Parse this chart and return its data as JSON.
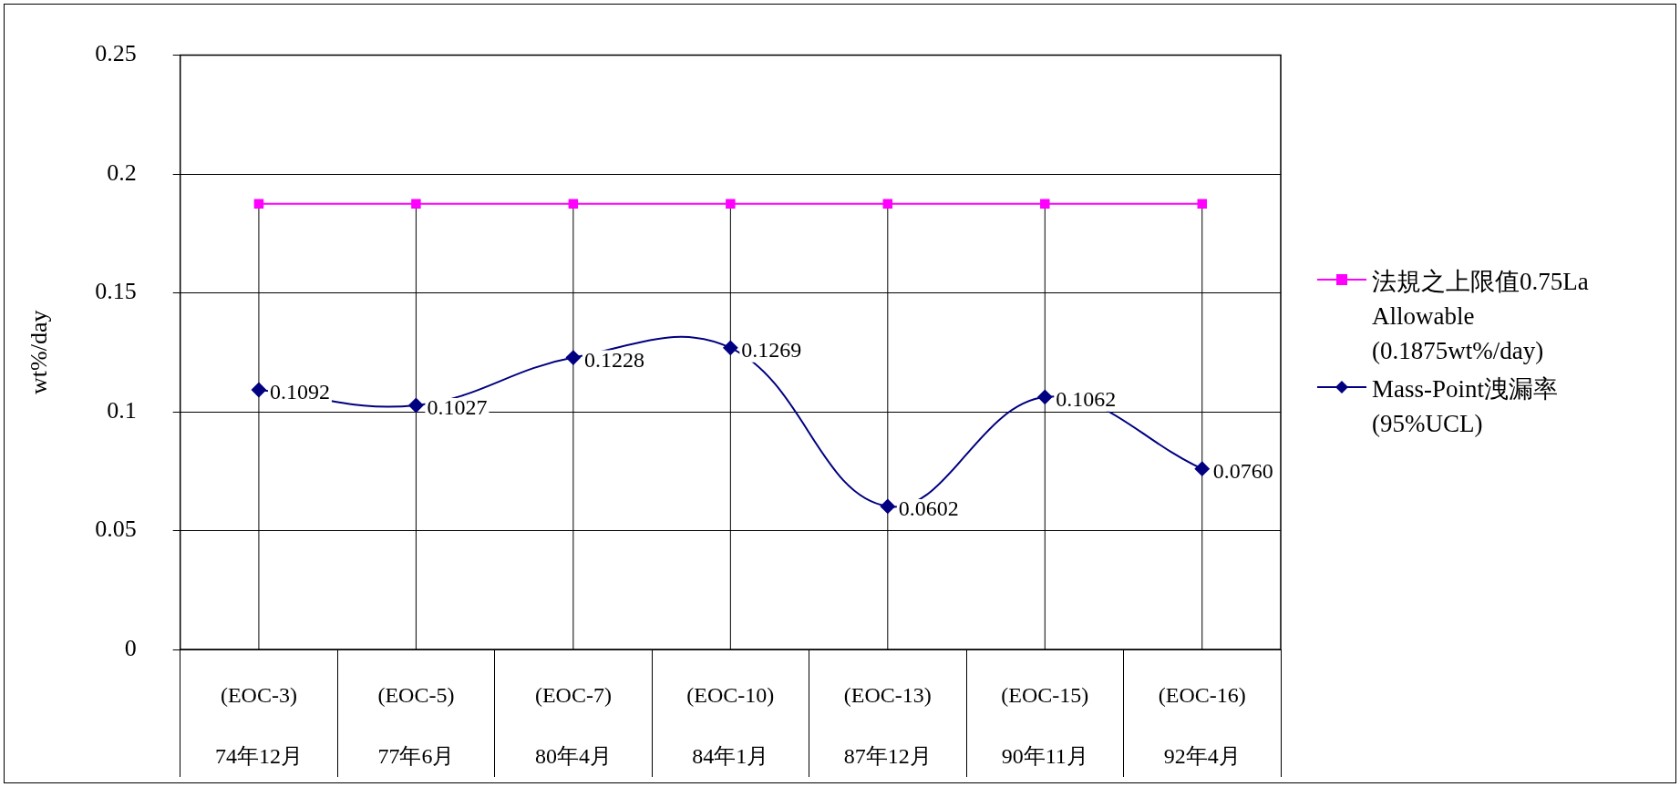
{
  "chart_data": {
    "type": "line",
    "ylabel": "wt%/day",
    "categories": [
      "(EOC-3)\n74年12月",
      "(EOC-5)\n77年6月",
      "(EOC-7)\n80年4月",
      "(EOC-10)\n84年1月",
      "(EOC-13)\n87年12月",
      "(EOC-15)\n90年11月",
      "(EOC-16)\n92年4月"
    ],
    "series": [
      {
        "name": "法規之上限值0.75La\nAllowable\n(0.1875wt%/day)",
        "color": "#ff00ff",
        "marker": "square",
        "values": [
          0.1875,
          0.1875,
          0.1875,
          0.1875,
          0.1875,
          0.1875,
          0.1875
        ]
      },
      {
        "name": "Mass-Point洩漏率\n(95%UCL)",
        "color": "#000080",
        "marker": "diamond",
        "values": [
          0.1092,
          0.1027,
          0.1228,
          0.1269,
          0.0602,
          0.1062,
          0.076
        ],
        "value_labels": [
          "0.1092",
          "0.1027",
          "0.1228",
          "0.1269",
          "0.0602",
          "0.1062",
          "0.0760"
        ]
      }
    ],
    "ylim": [
      0,
      0.25
    ],
    "yticks": [
      0,
      0.05,
      0.1,
      0.15,
      0.2,
      0.25
    ],
    "grid": true,
    "legend": "right"
  }
}
